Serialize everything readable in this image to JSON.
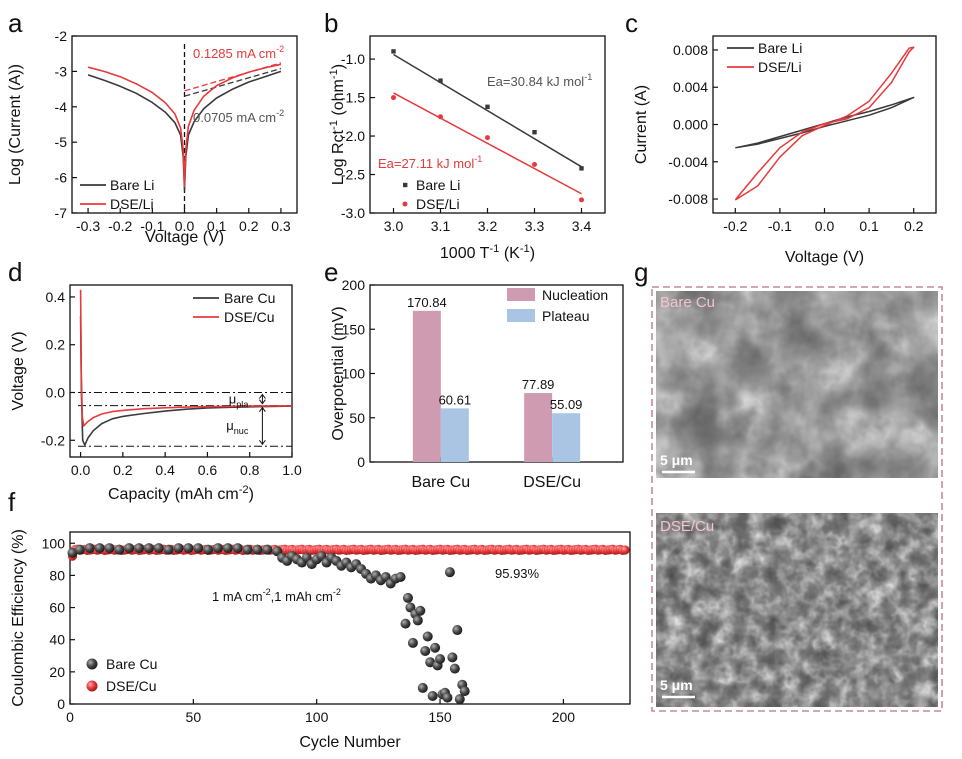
{
  "colors": {
    "black": "#3a3a3a",
    "red": "#e8393b",
    "pink": "#cf9bb0",
    "blue": "#a9c5e3"
  },
  "panel_labels": {
    "a": "a",
    "b": "b",
    "c": "c",
    "d": "d",
    "e": "e",
    "f": "f",
    "g": "g"
  },
  "chart_data": [
    {
      "panel": "a",
      "type": "line",
      "xlabel": "Voltage (V)",
      "ylabel": "Log  (Current (A))",
      "xlim": [
        -0.35,
        0.35
      ],
      "ylim": [
        -7,
        -2
      ],
      "xticks": [
        -0.3,
        -0.2,
        -0.1,
        0.0,
        0.1,
        0.2,
        0.3
      ],
      "xtick_labels": [
        "-0.3",
        "-0.2",
        "-0.1",
        "0.0",
        "0.1",
        "0.2",
        "0.3"
      ],
      "yticks": [
        -7,
        -6,
        -5,
        -4,
        -3,
        -2
      ],
      "ytick_labels": [
        "-7",
        "-6",
        "-5",
        "-4",
        "-3",
        "-2"
      ],
      "legend": {
        "position": "bottom-left",
        "entries": [
          "Bare Li",
          "DSE/Li"
        ]
      },
      "annotations": [
        {
          "text": "0.1285 mA cm",
          "sup": "-2",
          "color": "red"
        },
        {
          "text": "0.0705 mA cm",
          "sup": "-2",
          "color": "gray"
        }
      ],
      "series": [
        {
          "name": "Bare Li",
          "color": "black",
          "x": [
            -0.3,
            -0.25,
            -0.2,
            -0.15,
            -0.1,
            -0.06,
            -0.03,
            -0.012,
            -0.004,
            0.0,
            0.004,
            0.012,
            0.03,
            0.06,
            0.1,
            0.15,
            0.2,
            0.25,
            0.3
          ],
          "y": [
            -3.1,
            -3.25,
            -3.42,
            -3.62,
            -3.88,
            -4.15,
            -4.45,
            -4.8,
            -5.4,
            -6.35,
            -5.4,
            -4.8,
            -4.42,
            -4.05,
            -3.75,
            -3.5,
            -3.3,
            -3.15,
            -3.0
          ]
        },
        {
          "name": "DSE/Li",
          "color": "red",
          "x": [
            -0.3,
            -0.25,
            -0.2,
            -0.15,
            -0.1,
            -0.06,
            -0.03,
            -0.012,
            -0.004,
            0.0,
            0.004,
            0.012,
            0.03,
            0.06,
            0.1,
            0.15,
            0.2,
            0.25,
            0.3
          ],
          "y": [
            -2.88,
            -3.0,
            -3.15,
            -3.35,
            -3.6,
            -3.88,
            -4.2,
            -4.6,
            -5.2,
            -6.25,
            -5.2,
            -4.55,
            -4.1,
            -3.7,
            -3.4,
            -3.18,
            -3.02,
            -2.9,
            -2.8
          ]
        }
      ],
      "tafel_fits": [
        {
          "color": "black",
          "x": [
            0.0,
            0.3
          ],
          "y": [
            -3.7,
            -2.92
          ]
        },
        {
          "color": "red",
          "x": [
            0.0,
            0.3
          ],
          "y": [
            -3.55,
            -2.76
          ]
        }
      ],
      "vertical_dash_x": 0.0
    },
    {
      "panel": "b",
      "type": "scatter",
      "xlabel": "1000 T",
      "xlabel_sup": "-1",
      "xlabel_tail": " (K",
      "xlabel_tail_sup": "-1",
      "xlabel_end": ")",
      "ylabel": "Log Rct",
      "ylabel_sup": "-1",
      "ylabel_tail": " (ohm",
      "ylabel_tail_sup": "-1",
      "ylabel_end": ")",
      "xlim": [
        2.95,
        3.45
      ],
      "ylim": [
        -3.0,
        -0.7
      ],
      "xticks": [
        3.0,
        3.1,
        3.2,
        3.3,
        3.4
      ],
      "xtick_labels": [
        "3.0",
        "3.1",
        "3.2",
        "3.3",
        "3.4"
      ],
      "yticks": [
        -3.0,
        -2.5,
        -2.0,
        -1.5,
        -1.0
      ],
      "ytick_labels": [
        "-3.0",
        "-2.5",
        "-2.0",
        "-1.5",
        "-1.0"
      ],
      "legend": {
        "position": "bottom-left",
        "entries": [
          "Bare Li",
          "DSE/Li"
        ]
      },
      "annotations": [
        {
          "text": "Ea=30.84 kJ mol",
          "sup": "-1",
          "color": "gray"
        },
        {
          "text": "Ea=27.11 kJ mol",
          "sup": "-1",
          "color": "red"
        }
      ],
      "series": [
        {
          "name": "Bare Li",
          "color": "black",
          "x": [
            3.0,
            3.1,
            3.2,
            3.3,
            3.4
          ],
          "y": [
            -0.9,
            -1.28,
            -1.62,
            -1.95,
            -2.42
          ]
        },
        {
          "name": "DSE/Li",
          "color": "red",
          "x": [
            3.0,
            3.1,
            3.2,
            3.3,
            3.4
          ],
          "y": [
            -1.5,
            -1.75,
            -2.02,
            -2.37,
            -2.83
          ]
        }
      ],
      "fits": [
        {
          "color": "black",
          "x": [
            3.0,
            3.4
          ],
          "y": [
            -0.94,
            -2.4
          ]
        },
        {
          "color": "red",
          "x": [
            3.0,
            3.4
          ],
          "y": [
            -1.44,
            -2.75
          ]
        }
      ]
    },
    {
      "panel": "c",
      "type": "line",
      "xlabel": "Voltage (V)",
      "ylabel": "Current (A)",
      "xlim": [
        -0.25,
        0.25
      ],
      "ylim": [
        -0.0095,
        0.0095
      ],
      "xticks": [
        -0.2,
        -0.1,
        0.0,
        0.1,
        0.2
      ],
      "xtick_labels": [
        "-0.2",
        "-0.1",
        "0.0",
        "0.1",
        "0.2"
      ],
      "yticks": [
        -0.008,
        -0.004,
        0.0,
        0.004,
        0.008
      ],
      "ytick_labels": [
        "-0.008",
        "-0.004",
        "0.000",
        "0.004",
        "0.008"
      ],
      "legend": {
        "position": "top-left",
        "entries": [
          "Bare Li",
          "DSE/Li"
        ]
      },
      "series": [
        {
          "name": "Bare Li",
          "color": "black",
          "x": [
            -0.2,
            -0.15,
            -0.1,
            -0.05,
            0.0,
            0.05,
            0.1,
            0.15,
            0.2,
            0.15,
            0.1,
            0.05,
            0.0,
            -0.05,
            -0.1,
            -0.15,
            -0.2
          ],
          "y": [
            -0.0025,
            -0.0021,
            -0.0015,
            -0.0009,
            -0.0002,
            0.0004,
            0.001,
            0.0018,
            0.0029,
            0.0021,
            0.0014,
            0.0008,
            0.0001,
            -0.0006,
            -0.0013,
            -0.002,
            -0.0025
          ]
        },
        {
          "name": "DSE/Li",
          "color": "red",
          "x": [
            -0.2,
            -0.15,
            -0.1,
            -0.05,
            0.0,
            0.05,
            0.1,
            0.15,
            0.19,
            0.2,
            0.19,
            0.15,
            0.1,
            0.05,
            0.0,
            -0.05,
            -0.1,
            -0.15,
            -0.19,
            -0.2
          ],
          "y": [
            -0.0081,
            -0.0066,
            -0.0035,
            -0.0012,
            -0.0001,
            0.0009,
            0.0025,
            0.0055,
            0.0082,
            0.0083,
            0.0078,
            0.0045,
            0.0018,
            0.0006,
            0.0001,
            -0.0008,
            -0.0025,
            -0.0052,
            -0.0075,
            -0.0081
          ]
        }
      ]
    },
    {
      "panel": "d",
      "type": "line",
      "xlabel": "Capacity  (mAh cm",
      "xlabel_sup": "-2",
      "xlabel_end": ")",
      "ylabel": "Voltage (V)",
      "xlim": [
        -0.05,
        1.0
      ],
      "ylim": [
        -0.27,
        0.45
      ],
      "xticks": [
        0.0,
        0.2,
        0.4,
        0.6,
        0.8,
        1.0
      ],
      "xtick_labels": [
        "0.0",
        "0.2",
        "0.4",
        "0.6",
        "0.8",
        "1.0"
      ],
      "yticks": [
        -0.2,
        0.0,
        0.2,
        0.4
      ],
      "ytick_labels": [
        "-0.2",
        "0.0",
        "0.2",
        "0.4"
      ],
      "legend": {
        "position": "top-right",
        "entries": [
          "Bare Cu",
          "DSE/Cu"
        ]
      },
      "annotations": [
        {
          "text": "μ",
          "sub": "pla"
        },
        {
          "text": "μ",
          "sub": "nuc"
        }
      ],
      "reference_lines_y": [
        0.0,
        -0.055,
        -0.225
      ],
      "series": [
        {
          "name": "Bare Cu",
          "color": "black",
          "x": [
            0.0,
            0.004,
            0.01,
            0.02,
            0.035,
            0.06,
            0.1,
            0.15,
            0.2,
            0.3,
            0.4,
            0.5,
            0.6,
            0.7,
            0.8,
            0.9,
            1.0
          ],
          "y": [
            0.32,
            0.0,
            -0.2,
            -0.22,
            -0.19,
            -0.16,
            -0.13,
            -0.11,
            -0.1,
            -0.088,
            -0.078,
            -0.07,
            -0.065,
            -0.062,
            -0.06,
            -0.058,
            -0.057
          ]
        },
        {
          "name": "DSE/Cu",
          "color": "red",
          "x": [
            0.0,
            0.003,
            0.008,
            0.015,
            0.03,
            0.06,
            0.1,
            0.15,
            0.2,
            0.3,
            0.4,
            0.5,
            0.6,
            0.7,
            0.8,
            0.9,
            1.0
          ],
          "y": [
            0.43,
            0.1,
            -0.1,
            -0.14,
            -0.125,
            -0.105,
            -0.09,
            -0.08,
            -0.075,
            -0.068,
            -0.064,
            -0.061,
            -0.059,
            -0.058,
            -0.057,
            -0.056,
            -0.056
          ]
        }
      ]
    },
    {
      "panel": "e",
      "type": "bar",
      "ylabel": "Overpotential (mV)",
      "ylim": [
        0,
        200
      ],
      "yticks": [
        0,
        50,
        100,
        150,
        200
      ],
      "ytick_labels": [
        "0",
        "50",
        "100",
        "150",
        "200"
      ],
      "categories": [
        "Bare Cu",
        "DSE/Cu"
      ],
      "legend": {
        "position": "top-right",
        "entries": [
          "Nucleation",
          "Plateau"
        ]
      },
      "series": [
        {
          "name": "Nucleation",
          "color": "pink",
          "values": [
            170.84,
            77.89
          ],
          "labels": [
            "170.84",
            "77.89"
          ]
        },
        {
          "name": "Plateau",
          "color": "blue",
          "values": [
            60.61,
            55.09
          ],
          "labels": [
            "60.61",
            "55.09"
          ]
        }
      ]
    },
    {
      "panel": "f",
      "type": "scatter",
      "xlabel": "Cycle Number",
      "ylabel": "Coulombic Efficiency (%)",
      "xlim": [
        0,
        227
      ],
      "ylim": [
        0,
        107
      ],
      "xticks": [
        0,
        50,
        100,
        150,
        200
      ],
      "xtick_labels": [
        "0",
        "50",
        "100",
        "150",
        "200"
      ],
      "yticks": [
        0,
        20,
        40,
        60,
        80,
        100
      ],
      "ytick_labels": [
        "0",
        "20",
        "40",
        "60",
        "80",
        "100"
      ],
      "legend": {
        "position": "bottom-left",
        "entries": [
          "Bare Cu",
          "DSE/Cu"
        ]
      },
      "annotations": [
        {
          "text": "1 mA cm",
          "sup": "-2",
          "text2": ",1 mAh cm",
          "sup2": "-2"
        },
        {
          "text": "95.93%"
        }
      ],
      "series": [
        {
          "name": "Bare Cu",
          "color": "black",
          "x": [
            1,
            4,
            8,
            12,
            16,
            20,
            24,
            28,
            32,
            36,
            40,
            44,
            48,
            52,
            56,
            60,
            64,
            68,
            72,
            76,
            80,
            84,
            86,
            88,
            90,
            92,
            94,
            96,
            98,
            100,
            102,
            104,
            106,
            108,
            110,
            112,
            114,
            116,
            118,
            120,
            122,
            124,
            126,
            128,
            130,
            132,
            134,
            136,
            137,
            138,
            139,
            140,
            141,
            142,
            143,
            144,
            145,
            146,
            147,
            148,
            149,
            150,
            151,
            152,
            153,
            154,
            155,
            156,
            157,
            158,
            159,
            160
          ],
          "y": [
            94,
            96,
            97,
            97,
            97,
            96,
            97,
            97,
            97,
            97,
            96,
            97,
            97,
            97,
            96,
            97,
            97,
            97,
            96,
            96,
            96,
            95,
            91,
            89,
            92,
            90,
            88,
            91,
            87,
            90,
            92,
            88,
            91,
            89,
            86,
            88,
            85,
            87,
            84,
            81,
            78,
            80,
            77,
            79,
            75,
            78,
            79,
            50,
            66,
            60,
            38,
            56,
            52,
            58,
            10,
            33,
            42,
            26,
            5,
            35,
            24,
            28,
            6,
            7,
            4,
            82,
            29,
            22,
            46,
            3,
            12,
            8
          ]
        },
        {
          "name": "DSE/Cu",
          "color": "red",
          "x_start": 1,
          "x_end": 225,
          "x_step": 1,
          "y_typical": 95.93,
          "y_first": 92
        }
      ]
    }
  ],
  "images": {
    "top": {
      "label": "Bare Cu",
      "scale": "5 μm"
    },
    "bottom": {
      "label": "DSE/Cu",
      "scale": "5 μm"
    }
  }
}
